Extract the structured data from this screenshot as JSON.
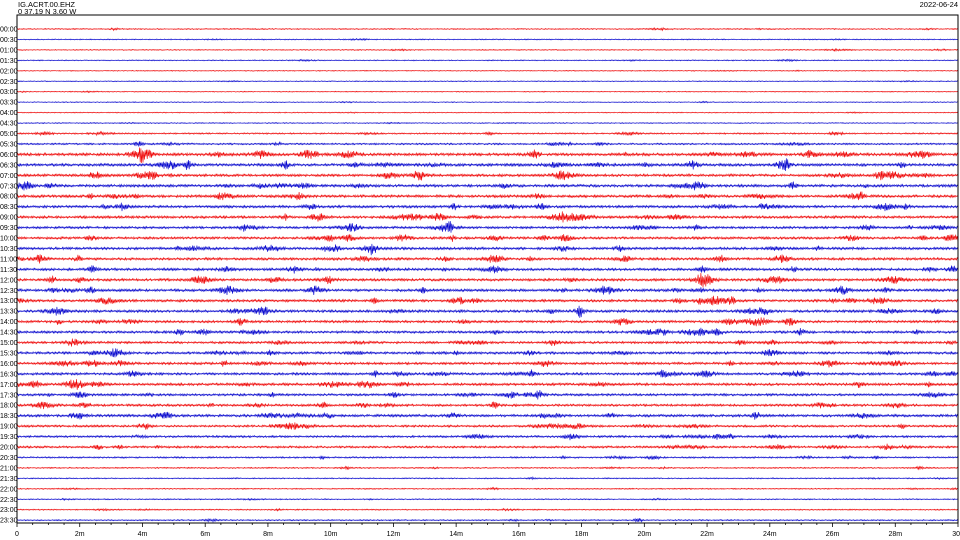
{
  "header": {
    "station": "IG.ACRT.00.EHZ",
    "coords": "0  37.19 N 3.60 W",
    "date": "2022-06-24"
  },
  "colors": {
    "even_rows": "#ee0000",
    "odd_rows": "#0000cc",
    "frame": "#000000"
  },
  "chart_data": {
    "type": "line",
    "title": "",
    "xlabel": "",
    "ylabel": "",
    "xlim": [
      0,
      30
    ],
    "x_unit": "minutes",
    "x_ticks": [
      {
        "value": 0,
        "label": "0"
      },
      {
        "value": 2,
        "label": "2m"
      },
      {
        "value": 4,
        "label": "4m"
      },
      {
        "value": 6,
        "label": "6m"
      },
      {
        "value": 8,
        "label": "8m"
      },
      {
        "value": 10,
        "label": "10m"
      },
      {
        "value": 12,
        "label": "12m"
      },
      {
        "value": 14,
        "label": "14m"
      },
      {
        "value": 16,
        "label": "16m"
      },
      {
        "value": 18,
        "label": "18m"
      },
      {
        "value": 20,
        "label": "20m"
      },
      {
        "value": 22,
        "label": "22m"
      },
      {
        "value": 24,
        "label": "24m"
      },
      {
        "value": 26,
        "label": "26m"
      },
      {
        "value": 28,
        "label": "28m"
      },
      {
        "value": 30,
        "label": "30"
      }
    ],
    "rows": [
      {
        "label": "00:00",
        "activity": 0.2
      },
      {
        "label": "00:30",
        "activity": 0.15
      },
      {
        "label": "01:00",
        "activity": 0.15
      },
      {
        "label": "01:30",
        "activity": 0.15
      },
      {
        "label": "02:00",
        "activity": 0.1
      },
      {
        "label": "02:30",
        "activity": 0.1
      },
      {
        "label": "03:00",
        "activity": 0.1
      },
      {
        "label": "03:30",
        "activity": 0.1
      },
      {
        "label": "04:00",
        "activity": 0.12
      },
      {
        "label": "04:30",
        "activity": 0.15
      },
      {
        "label": "05:00",
        "activity": 0.35
      },
      {
        "label": "05:30",
        "activity": 0.45
      },
      {
        "label": "06:00",
        "activity": 0.9
      },
      {
        "label": "06:30",
        "activity": 0.85
      },
      {
        "label": "07:00",
        "activity": 0.8
      },
      {
        "label": "07:30",
        "activity": 0.85
      },
      {
        "label": "08:00",
        "activity": 0.85
      },
      {
        "label": "08:30",
        "activity": 0.8
      },
      {
        "label": "09:00",
        "activity": 0.8
      },
      {
        "label": "09:30",
        "activity": 0.75
      },
      {
        "label": "10:00",
        "activity": 0.75
      },
      {
        "label": "10:30",
        "activity": 0.8
      },
      {
        "label": "11:00",
        "activity": 0.8
      },
      {
        "label": "11:30",
        "activity": 0.8
      },
      {
        "label": "12:00",
        "activity": 0.8
      },
      {
        "label": "12:30",
        "activity": 0.85
      },
      {
        "label": "13:00",
        "activity": 0.8
      },
      {
        "label": "13:30",
        "activity": 0.8
      },
      {
        "label": "14:00",
        "activity": 0.75
      },
      {
        "label": "14:30",
        "activity": 0.75
      },
      {
        "label": "15:00",
        "activity": 0.7
      },
      {
        "label": "15:30",
        "activity": 0.8
      },
      {
        "label": "16:00",
        "activity": 0.75
      },
      {
        "label": "16:30",
        "activity": 0.75
      },
      {
        "label": "17:00",
        "activity": 0.8
      },
      {
        "label": "17:30",
        "activity": 0.7
      },
      {
        "label": "18:00",
        "activity": 0.7
      },
      {
        "label": "18:30",
        "activity": 0.8
      },
      {
        "label": "19:00",
        "activity": 0.65
      },
      {
        "label": "19:30",
        "activity": 0.6
      },
      {
        "label": "20:00",
        "activity": 0.6
      },
      {
        "label": "20:30",
        "activity": 0.4
      },
      {
        "label": "21:00",
        "activity": 0.25
      },
      {
        "label": "21:30",
        "activity": 0.2
      },
      {
        "label": "22:00",
        "activity": 0.2
      },
      {
        "label": "22:30",
        "activity": 0.2
      },
      {
        "label": "23:00",
        "activity": 0.22
      },
      {
        "label": "23:30",
        "activity": 0.25
      }
    ]
  }
}
